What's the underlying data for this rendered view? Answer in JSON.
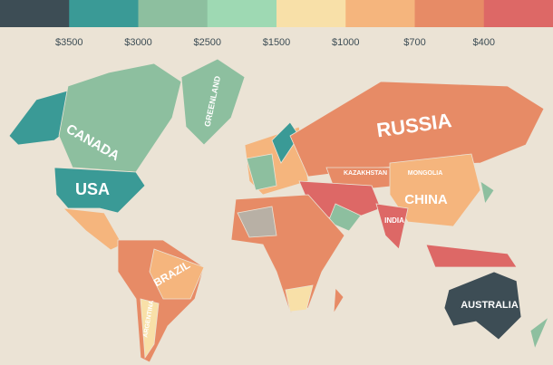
{
  "legend": {
    "colors": [
      "#3d4d55",
      "#3a9a96",
      "#8dbf9f",
      "#9ed9b3",
      "#f8e0a8",
      "#f5b57d",
      "#e78b66",
      "#dd6866"
    ],
    "labels": [
      "$3500",
      "$3000",
      "$2500",
      "$1500",
      "$1000",
      "$700",
      "$400"
    ]
  },
  "map_labels": [
    "CANADA",
    "USA",
    "GREENLAND",
    "RUSSIA",
    "KAZAKHSTAN",
    "MONGOLIA",
    "CHINA",
    "INDIA",
    "BRAZIL",
    "ARGENTINA",
    "AUSTRALIA"
  ]
}
